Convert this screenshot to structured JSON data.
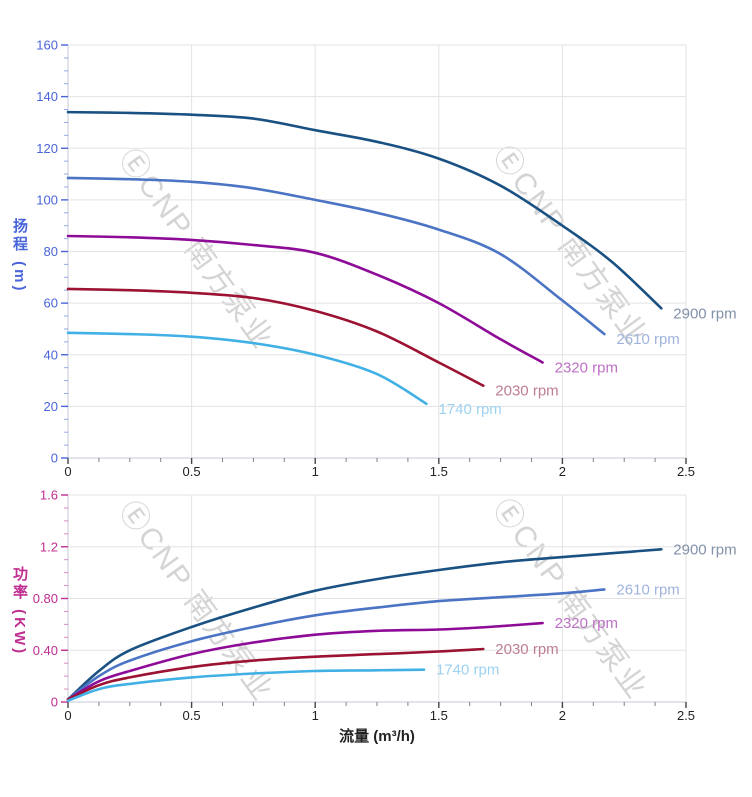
{
  "watermark": {
    "text": "ⒺCNP 南方泵业",
    "color": "#d4d4d4"
  },
  "x_axis": {
    "title": "流量 (m³/h)",
    "tick_labels": [
      "0",
      "0.5",
      "1",
      "1.5",
      "2",
      "2.5"
    ]
  },
  "chart_data": [
    {
      "type": "line",
      "title": "",
      "xlabel": "",
      "ylabel": "扬程 (m)",
      "xlim": [
        0,
        2.5
      ],
      "ylim": [
        0,
        160
      ],
      "grid": true,
      "legend_position": "labels-at-curve-ends",
      "x_minor_step": 0.125,
      "y_minor_step": 5,
      "axis_color": "#4a64d9",
      "x_tick_color": "#222222",
      "xticks": {
        "values": [
          0,
          0.5,
          1,
          1.5,
          2,
          2.5
        ],
        "labels": [
          "0",
          "0.5",
          "1",
          "1.5",
          "2",
          "2.5"
        ]
      },
      "yticks": {
        "values": [
          0,
          20,
          40,
          60,
          80,
          100,
          120,
          140,
          160
        ],
        "labels": [
          "0",
          "20",
          "40",
          "60",
          "80",
          "100",
          "120",
          "140",
          "160"
        ]
      },
      "series": [
        {
          "name": "2900 rpm",
          "color": "#1a5183",
          "label_color": "#8191a9",
          "points": [
            [
              0,
              134
            ],
            [
              0.25,
              133.7
            ],
            [
              0.5,
              133
            ],
            [
              0.75,
              131.5
            ],
            [
              1.0,
              127
            ],
            [
              1.25,
              122.5
            ],
            [
              1.5,
              116
            ],
            [
              1.75,
              105.5
            ],
            [
              2.0,
              90
            ],
            [
              2.2,
              76
            ],
            [
              2.4,
              58
            ]
          ]
        },
        {
          "name": "2610 rpm",
          "color": "#4b74c4",
          "label_color": "#a0b3dd",
          "points": [
            [
              0,
              108.5
            ],
            [
              0.25,
              108
            ],
            [
              0.5,
              107
            ],
            [
              0.75,
              104.5
            ],
            [
              1.0,
              100
            ],
            [
              1.25,
              95
            ],
            [
              1.5,
              88.5
            ],
            [
              1.75,
              79
            ],
            [
              2.0,
              61
            ],
            [
              2.17,
              48
            ]
          ]
        },
        {
          "name": "2320 rpm",
          "color": "#8e0b97",
          "label_color": "#bd70c5",
          "points": [
            [
              0,
              86
            ],
            [
              0.25,
              85.5
            ],
            [
              0.5,
              84.5
            ],
            [
              0.75,
              82.5
            ],
            [
              1.0,
              79.5
            ],
            [
              1.25,
              71
            ],
            [
              1.5,
              60
            ],
            [
              1.75,
              46
            ],
            [
              1.92,
              37
            ]
          ]
        },
        {
          "name": "2030 rpm",
          "color": "#9c1232",
          "label_color": "#bd7e90",
          "points": [
            [
              0,
              65.5
            ],
            [
              0.25,
              65
            ],
            [
              0.5,
              64
            ],
            [
              0.75,
              62
            ],
            [
              1.0,
              57
            ],
            [
              1.25,
              49
            ],
            [
              1.5,
              37
            ],
            [
              1.68,
              28
            ]
          ]
        },
        {
          "name": "1740 rpm",
          "color": "#41b1e5",
          "label_color": "#9cd2f0",
          "points": [
            [
              0,
              48.5
            ],
            [
              0.25,
              48
            ],
            [
              0.5,
              47
            ],
            [
              0.75,
              44.5
            ],
            [
              1.0,
              40
            ],
            [
              1.25,
              32.5
            ],
            [
              1.45,
              21
            ]
          ]
        }
      ]
    },
    {
      "type": "line",
      "title": "",
      "xlabel": "流量 (m³/h)",
      "ylabel": "功率 (KW)",
      "xlim": [
        0,
        2.5
      ],
      "ylim": [
        0,
        1.6
      ],
      "grid": true,
      "legend_position": "labels-at-curve-ends",
      "x_minor_step": 0.125,
      "y_minor_step": 0.1,
      "axis_color": "#c02d90",
      "x_tick_color": "#222222",
      "xticks": {
        "values": [
          0,
          0.5,
          1,
          1.5,
          2,
          2.5
        ],
        "labels": [
          "0",
          "0.5",
          "1",
          "1.5",
          "2",
          "2.5"
        ]
      },
      "yticks": {
        "values": [
          0,
          0.4,
          0.8,
          1.2,
          1.6
        ],
        "labels": [
          "0",
          "0.40",
          "0.80",
          "1.2",
          "1.6"
        ]
      },
      "series": [
        {
          "name": "2900 rpm",
          "color": "#1a5183",
          "label_color": "#8191a9",
          "points": [
            [
              0,
              0.02
            ],
            [
              0.125,
              0.24
            ],
            [
              0.25,
              0.4
            ],
            [
              0.5,
              0.58
            ],
            [
              0.75,
              0.73
            ],
            [
              1.0,
              0.86
            ],
            [
              1.25,
              0.95
            ],
            [
              1.5,
              1.02
            ],
            [
              1.75,
              1.08
            ],
            [
              2.0,
              1.12
            ],
            [
              2.2,
              1.15
            ],
            [
              2.4,
              1.18
            ]
          ]
        },
        {
          "name": "2610 rpm",
          "color": "#4b74c4",
          "label_color": "#a0b3dd",
          "points": [
            [
              0,
              0.02
            ],
            [
              0.125,
              0.2
            ],
            [
              0.25,
              0.32
            ],
            [
              0.5,
              0.47
            ],
            [
              0.75,
              0.58
            ],
            [
              1.0,
              0.67
            ],
            [
              1.25,
              0.73
            ],
            [
              1.5,
              0.78
            ],
            [
              1.75,
              0.81
            ],
            [
              2.0,
              0.84
            ],
            [
              2.17,
              0.87
            ]
          ]
        },
        {
          "name": "2320 rpm",
          "color": "#8e0b97",
          "label_color": "#bd70c5",
          "points": [
            [
              0,
              0.02
            ],
            [
              0.125,
              0.16
            ],
            [
              0.25,
              0.24
            ],
            [
              0.5,
              0.37
            ],
            [
              0.75,
              0.46
            ],
            [
              1.0,
              0.52
            ],
            [
              1.25,
              0.55
            ],
            [
              1.5,
              0.56
            ],
            [
              1.7,
              0.58
            ],
            [
              1.92,
              0.61
            ]
          ]
        },
        {
          "name": "2030 rpm",
          "color": "#9c1232",
          "label_color": "#bd7e90",
          "points": [
            [
              0,
              0.02
            ],
            [
              0.125,
              0.13
            ],
            [
              0.25,
              0.19
            ],
            [
              0.5,
              0.27
            ],
            [
              0.75,
              0.32
            ],
            [
              1.0,
              0.35
            ],
            [
              1.25,
              0.37
            ],
            [
              1.5,
              0.39
            ],
            [
              1.68,
              0.41
            ]
          ]
        },
        {
          "name": "1740 rpm",
          "color": "#41b1e5",
          "label_color": "#9cd2f0",
          "points": [
            [
              0,
              0.01
            ],
            [
              0.125,
              0.1
            ],
            [
              0.25,
              0.14
            ],
            [
              0.5,
              0.19
            ],
            [
              0.75,
              0.22
            ],
            [
              1.0,
              0.24
            ],
            [
              1.25,
              0.245
            ],
            [
              1.44,
              0.25
            ]
          ]
        }
      ]
    }
  ]
}
